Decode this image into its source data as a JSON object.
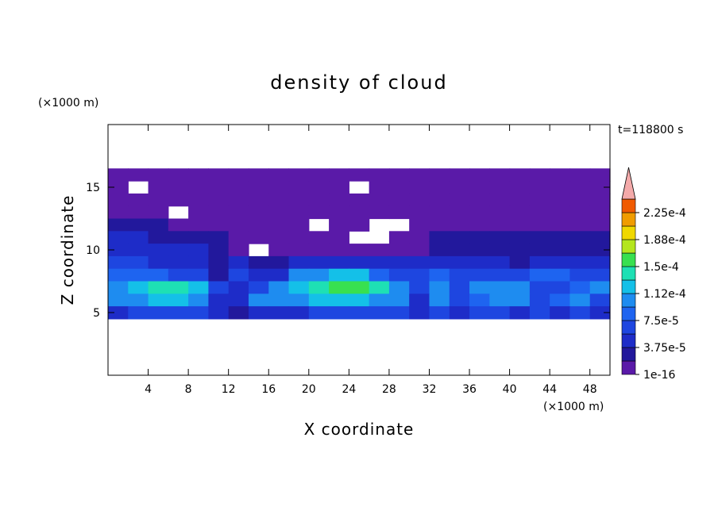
{
  "chart_data": {
    "type": "contour",
    "title": "density of cloud",
    "x_label": "X coordinate",
    "y_label": "Z coordinate",
    "x_unit": "(×1000 m)",
    "y_unit": "(×1000 m)",
    "annotation": "t=118800 s",
    "xlim": [
      0,
      50
    ],
    "ylim": [
      0,
      20
    ],
    "xticks": [
      4,
      8,
      12,
      16,
      20,
      24,
      28,
      32,
      36,
      40,
      44,
      48
    ],
    "yticks": [
      5,
      10,
      15
    ],
    "x": [
      1,
      3,
      5,
      7,
      9,
      11,
      13,
      15,
      17,
      19,
      21,
      23,
      25,
      27,
      29,
      31,
      33,
      35,
      37,
      39,
      41,
      43,
      45,
      47,
      49
    ],
    "y": [
      16,
      15,
      14,
      13,
      12,
      11,
      10,
      9,
      8,
      7,
      6,
      5
    ],
    "z": [
      [
        5e-06,
        5e-06,
        5e-06,
        5e-06,
        5e-06,
        5e-06,
        5e-06,
        5e-06,
        5e-06,
        5e-06,
        5e-06,
        5e-06,
        5e-06,
        5e-06,
        5e-06,
        5e-06,
        5e-06,
        5e-06,
        5e-06,
        5e-06,
        5e-06,
        5e-06,
        5e-06,
        5e-06,
        5e-06
      ],
      [
        5e-06,
        null,
        5e-06,
        5e-06,
        5e-06,
        5e-06,
        5e-06,
        5e-06,
        5e-06,
        5e-06,
        5e-06,
        5e-06,
        null,
        5e-06,
        5e-06,
        5e-06,
        5e-06,
        5e-06,
        5e-06,
        5e-06,
        5e-06,
        5e-06,
        5e-06,
        5e-06,
        5e-06
      ],
      [
        5e-06,
        5e-06,
        5e-06,
        5e-06,
        5e-06,
        5e-06,
        5e-06,
        5e-06,
        5e-06,
        5e-06,
        5e-06,
        5e-06,
        5e-06,
        5e-06,
        5e-06,
        5e-06,
        5e-06,
        5e-06,
        5e-06,
        5e-06,
        5e-06,
        5e-06,
        5e-06,
        5e-06,
        5e-06
      ],
      [
        5e-06,
        5e-06,
        5e-06,
        null,
        5e-06,
        5e-06,
        5e-06,
        5e-06,
        5e-06,
        5e-06,
        5e-06,
        5e-06,
        5e-06,
        5e-06,
        5e-06,
        5e-06,
        5e-06,
        5e-06,
        5e-06,
        5e-06,
        5e-06,
        5e-06,
        5e-06,
        5e-06,
        5e-06
      ],
      [
        2.5e-05,
        2.5e-05,
        2.5e-05,
        5e-06,
        5e-06,
        5e-06,
        5e-06,
        5e-06,
        5e-06,
        5e-06,
        null,
        5e-06,
        5e-06,
        null,
        null,
        5e-06,
        5e-06,
        5e-06,
        5e-06,
        5e-06,
        5e-06,
        5e-06,
        5e-06,
        5e-06,
        5e-06
      ],
      [
        4.5e-05,
        4.5e-05,
        2.5e-05,
        2.5e-05,
        2.5e-05,
        2.5e-05,
        5e-06,
        5e-06,
        5e-06,
        5e-06,
        5e-06,
        5e-06,
        null,
        null,
        5e-06,
        5e-06,
        2.5e-05,
        2.5e-05,
        2.5e-05,
        2.5e-05,
        2.5e-05,
        2.5e-05,
        2.5e-05,
        2.5e-05,
        2.5e-05
      ],
      [
        4.5e-05,
        4.5e-05,
        4.5e-05,
        4.5e-05,
        4.5e-05,
        2.5e-05,
        5e-06,
        null,
        5e-06,
        5e-06,
        5e-06,
        5e-06,
        5e-06,
        5e-06,
        5e-06,
        5e-06,
        2.5e-05,
        2.5e-05,
        2.5e-05,
        2.5e-05,
        2.5e-05,
        2.5e-05,
        2.5e-05,
        2.5e-05,
        2.5e-05
      ],
      [
        6.5e-05,
        6.5e-05,
        4.5e-05,
        4.5e-05,
        4.5e-05,
        2.5e-05,
        4.5e-05,
        2.5e-05,
        2.5e-05,
        4.5e-05,
        4.5e-05,
        4.5e-05,
        4.5e-05,
        4.5e-05,
        4.5e-05,
        4.5e-05,
        4.5e-05,
        4.5e-05,
        4.5e-05,
        4.5e-05,
        2.5e-05,
        4.5e-05,
        4.5e-05,
        4.5e-05,
        4.5e-05
      ],
      [
        8.5e-05,
        8.5e-05,
        8.5e-05,
        6.5e-05,
        6.5e-05,
        2.5e-05,
        6.5e-05,
        4.5e-05,
        4.5e-05,
        0.000105,
        0.000105,
        0.000125,
        0.000125,
        8.5e-05,
        6.5e-05,
        6.5e-05,
        8.5e-05,
        6.5e-05,
        6.5e-05,
        6.5e-05,
        6.5e-05,
        8.5e-05,
        8.5e-05,
        6.5e-05,
        6.5e-05
      ],
      [
        0.000105,
        0.000125,
        0.000145,
        0.000145,
        0.000125,
        6.5e-05,
        4.5e-05,
        6.5e-05,
        0.000105,
        0.000125,
        0.000145,
        0.00016,
        0.00016,
        0.000145,
        0.000105,
        6.5e-05,
        0.000105,
        6.5e-05,
        0.000105,
        0.000105,
        0.000105,
        6.5e-05,
        6.5e-05,
        8.5e-05,
        0.000105
      ],
      [
        0.000105,
        0.000105,
        0.000125,
        0.000125,
        0.000105,
        4.5e-05,
        4.5e-05,
        0.000105,
        0.000105,
        0.000105,
        0.000125,
        0.000125,
        0.000125,
        0.000105,
        0.000105,
        4.5e-05,
        0.000105,
        6.5e-05,
        8.5e-05,
        0.000105,
        0.000105,
        6.5e-05,
        8.5e-05,
        0.000105,
        6.5e-05
      ],
      [
        4.5e-05,
        6.5e-05,
        6.5e-05,
        6.5e-05,
        6.5e-05,
        4.5e-05,
        2.5e-05,
        4.5e-05,
        4.5e-05,
        4.5e-05,
        6.5e-05,
        6.5e-05,
        6.5e-05,
        6.5e-05,
        6.5e-05,
        4.5e-05,
        6.5e-05,
        4.5e-05,
        6.5e-05,
        6.5e-05,
        4.5e-05,
        6.5e-05,
        4.5e-05,
        6.5e-05,
        4.5e-05
      ]
    ],
    "levels": [
      1e-16,
      1.875e-05,
      3.75e-05,
      5.625e-05,
      7.5e-05,
      9.375e-05,
      0.0001125,
      0.00013125,
      0.00015,
      0.00016875,
      0.0001875,
      0.00020625,
      0.000225,
      0.00024375
    ],
    "colors": [
      "#5a1aa8",
      "#22189c",
      "#1e2cc8",
      "#1e46e0",
      "#1e64f0",
      "#1e8cf0",
      "#14c0e8",
      "#1ee0b4",
      "#38e050",
      "#b4e61e",
      "#f0d800",
      "#f09c00",
      "#f05a00"
    ],
    "extend_color": "#f4aaaa",
    "cbar_ticks": [
      1e-16,
      {
        "value": 3.75e-05,
        "label": "3.75e-5"
      },
      {
        "value": 7.5e-05,
        "label": "7.5e-5"
      },
      {
        "value": 0.0001125,
        "label": "1.12e-4"
      },
      {
        "value": 0.00015,
        "label": "1.5e-4"
      },
      {
        "value": 0.0001875,
        "label": "1.88e-4"
      },
      {
        "value": 0.000225,
        "label": "2.25e-4"
      }
    ]
  }
}
